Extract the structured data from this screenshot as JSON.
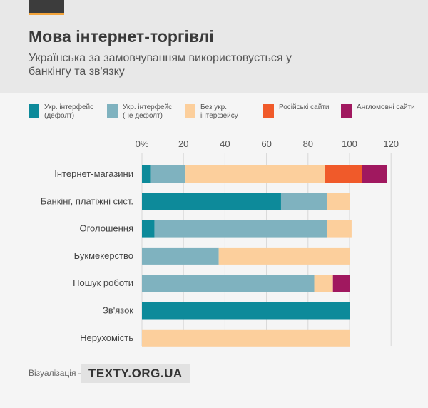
{
  "header": {
    "title": "Мова інтернет-торгівлі",
    "subtitle": "Українська за замовчуванням використовується у банкінгу та зв'язку"
  },
  "footer": {
    "label": "Візуалізація –",
    "badge": "TEXTY.ORG.UA"
  },
  "chart_data": {
    "type": "bar",
    "orientation": "horizontal",
    "stacked": true,
    "categories": [
      "Інтернет-магазини",
      "Банкінг, платіжні сист.",
      "Оголошення",
      "Букмекерство",
      "Пошук роботи",
      "Зв'язок",
      "Нерухомість"
    ],
    "series": [
      {
        "name": "Укр. інтерфейс (дефолт)",
        "color": "#0d8a9a",
        "values": [
          4,
          67,
          6,
          0,
          0,
          100,
          0
        ]
      },
      {
        "name": "Укр. інтерфейс (не дефолт)",
        "color": "#7fb2bf",
        "values": [
          17,
          22,
          83,
          37,
          83,
          0,
          0
        ]
      },
      {
        "name": "Без укр. інтерфейсу",
        "color": "#fccf9c",
        "values": [
          67,
          11,
          12,
          63,
          9,
          0,
          100
        ]
      },
      {
        "name": "Російські сайти",
        "color": "#f05a2a",
        "values": [
          18,
          0,
          0,
          0,
          0,
          0,
          0
        ]
      },
      {
        "name": "Англомовні сайти",
        "color": "#a0185f",
        "values": [
          12,
          0,
          0,
          0,
          8,
          0,
          0
        ]
      }
    ],
    "x_ticks": [
      "0%",
      "20",
      "40",
      "60",
      "80",
      "100",
      "120"
    ],
    "xlim": [
      0,
      120
    ],
    "grid": true,
    "legend_position": "top"
  }
}
